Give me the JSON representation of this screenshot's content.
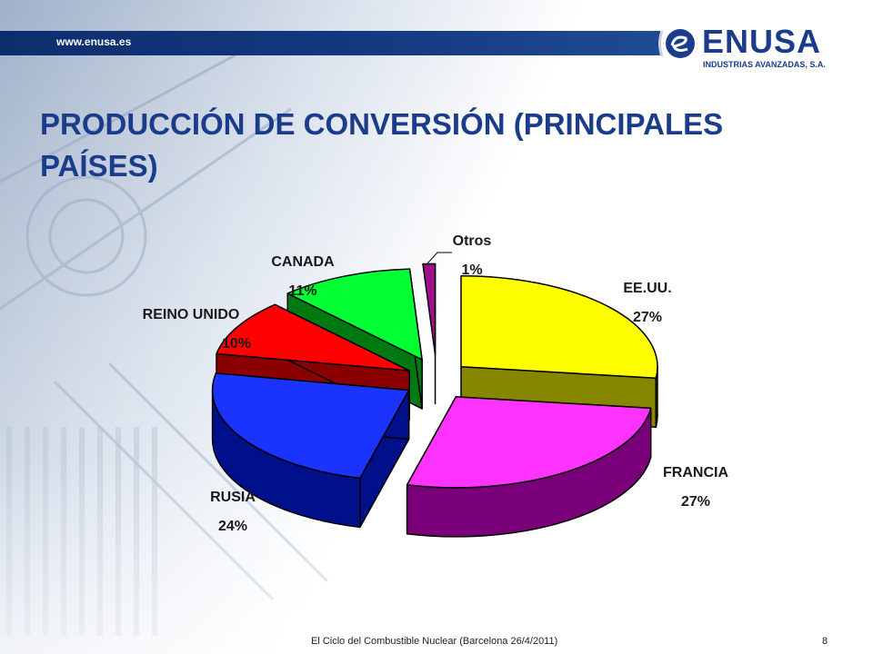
{
  "header": {
    "website": "www.enusa.es",
    "logo_text": "ENUSA",
    "logo_sub": "INDUSTRIAS AVANZADAS, S.A."
  },
  "title": "PRODUCCIÓN DE CONVERSIÓN (PRINCIPALES PAÍSES)",
  "footer": {
    "text": "El Ciclo del Combustible Nuclear (Barcelona 26/4/2011)",
    "page": "8"
  },
  "colors": {
    "brand": "#1a3c8a",
    "topbar": "#14397f"
  },
  "chart_data": {
    "type": "pie",
    "style": "3d-exploded",
    "slices": [
      {
        "label": "EE.UU.",
        "value": 27,
        "pct": "27%",
        "color": "#ffff00",
        "side": "#868600"
      },
      {
        "label": "FRANCIA",
        "value": 27,
        "pct": "27%",
        "color": "#ff33ff",
        "side": "#7a007a"
      },
      {
        "label": "RUSIA",
        "value": 24,
        "pct": "24%",
        "color": "#1a33ff",
        "side": "#00108a"
      },
      {
        "label": "REINO UNIDO",
        "value": 10,
        "pct": "10%",
        "color": "#ff0000",
        "side": "#8a0000"
      },
      {
        "label": "CANADA",
        "value": 11,
        "pct": "11%",
        "color": "#00ff33",
        "side": "#007a10"
      },
      {
        "label": "Otros",
        "value": 1,
        "pct": "1%",
        "color": "#a0108a",
        "side": "#500045"
      }
    ]
  }
}
